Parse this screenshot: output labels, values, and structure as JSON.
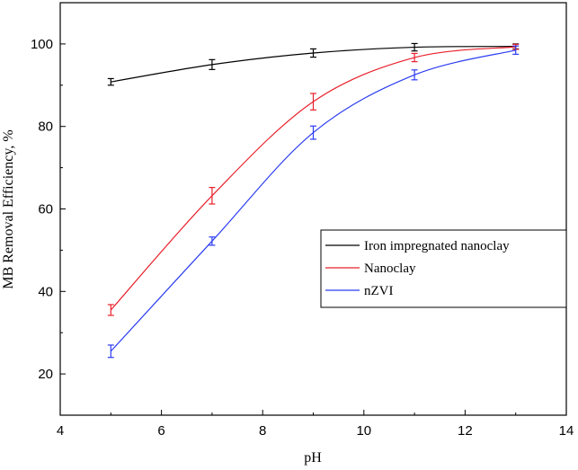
{
  "chart_data": {
    "type": "line",
    "xlabel": "pH",
    "ylabel": "MB Removal Efficiency, %",
    "xlim": [
      4,
      14
    ],
    "ylim": [
      10,
      110
    ],
    "xticks": [
      4,
      6,
      8,
      10,
      12,
      14
    ],
    "yticks": [
      20,
      40,
      60,
      80,
      100
    ],
    "grid": false,
    "legend_position": "center-right",
    "x": [
      5,
      7,
      9,
      11,
      13
    ],
    "series": [
      {
        "name": "Iron impregnated nanoclay",
        "color": "#000000",
        "values": [
          90.8,
          95.0,
          97.8,
          99.2,
          99.4
        ],
        "errors": [
          0.8,
          1.2,
          1.0,
          0.9,
          0.6
        ]
      },
      {
        "name": "Nanoclay",
        "color": "#e8202a",
        "values": [
          35.5,
          63.2,
          86.0,
          96.7,
          99.3
        ],
        "errors": [
          1.3,
          2.0,
          2.0,
          1.0,
          0.6
        ]
      },
      {
        "name": "nZVI",
        "color": "#2b3cf0",
        "values": [
          25.5,
          52.2,
          78.5,
          92.5,
          98.5
        ],
        "errors": [
          1.5,
          1.0,
          1.6,
          1.2,
          1.0
        ]
      }
    ]
  }
}
